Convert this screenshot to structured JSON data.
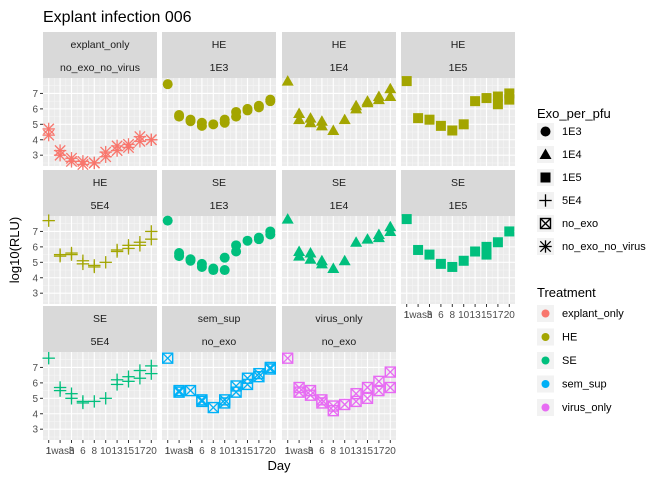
{
  "chart_data": {
    "type": "scatter",
    "title": "Explant infection 006",
    "xlabel": "Day",
    "ylabel": "log10(RLU)",
    "x_categories": [
      "1",
      "1wash",
      "3",
      "6",
      "8",
      "10",
      "13",
      "15",
      "17",
      "20"
    ],
    "x_tick_labels": [
      "1",
      "1wash",
      "3",
      "6",
      "8",
      "10",
      "13",
      "15",
      "17",
      "20"
    ],
    "y_ticks": [
      3,
      4,
      5,
      6,
      7
    ],
    "ylim": [
      2.3,
      8.0
    ],
    "grid": true,
    "legend_position": "right",
    "legends": {
      "shape": {
        "title": "Exo_per_pfu",
        "entries": [
          {
            "label": "1E3",
            "shape": "circle"
          },
          {
            "label": "1E4",
            "shape": "triangle"
          },
          {
            "label": "1E5",
            "shape": "square"
          },
          {
            "label": "5E4",
            "shape": "plus"
          },
          {
            "label": "no_exo",
            "shape": "boxx"
          },
          {
            "label": "no_exo_no_virus",
            "shape": "asterisk"
          }
        ]
      },
      "color": {
        "title": "Treatment",
        "entries": [
          {
            "label": "explant_only",
            "color": "#F8766D"
          },
          {
            "label": "HE",
            "color": "#A3A500"
          },
          {
            "label": "SE",
            "color": "#00BF7D"
          },
          {
            "label": "sem_sup",
            "color": "#00B0F6"
          },
          {
            "label": "virus_only",
            "color": "#E76BF3"
          }
        ]
      }
    },
    "panels": [
      {
        "strip1": "explant_only",
        "strip2": "no_exo_no_virus",
        "treatment": "explant_only",
        "shape": "asterisk",
        "series": [
          [
            4.7,
            4.3
          ],
          [
            3.3,
            3.0
          ],
          [
            2.8,
            2.6
          ],
          [
            2.6,
            2.4
          ],
          [
            2.5,
            2.5
          ],
          [
            3.2,
            2.9
          ],
          [
            3.6,
            3.3
          ],
          [
            3.7,
            3.5
          ],
          [
            4.2,
            3.9
          ],
          [
            4.0,
            4.0
          ]
        ]
      },
      {
        "strip1": "HE",
        "strip2": "1E3",
        "treatment": "HE",
        "shape": "circle",
        "series": [
          [
            7.6
          ],
          [
            5.6,
            5.5
          ],
          [
            5.3,
            5.2
          ],
          [
            5.1,
            4.9
          ],
          [
            5.0
          ],
          [
            5.1,
            5.3
          ],
          [
            5.8,
            5.5
          ],
          [
            6.0,
            5.9
          ],
          [
            6.2,
            6.1
          ],
          [
            6.6,
            6.5
          ]
        ]
      },
      {
        "strip1": "HE",
        "strip2": "1E4",
        "treatment": "HE",
        "shape": "triangle",
        "series": [
          [
            7.8
          ],
          [
            5.7,
            5.3
          ],
          [
            5.4,
            5.1
          ],
          [
            5.2,
            4.9
          ],
          [
            4.6
          ],
          [
            5.3
          ],
          [
            6.2,
            6.0
          ],
          [
            6.4,
            6.5
          ],
          [
            6.8,
            6.6
          ],
          [
            7.3,
            6.8
          ]
        ]
      },
      {
        "strip1": "HE",
        "strip2": "1E5",
        "treatment": "HE",
        "shape": "square",
        "series": [
          [
            7.8
          ],
          [
            5.4
          ],
          [
            5.3
          ],
          [
            4.9
          ],
          [
            4.6
          ],
          [
            5.0
          ],
          [
            6.5
          ],
          [
            6.7
          ],
          [
            6.8,
            6.3
          ],
          [
            7.0,
            6.6
          ]
        ]
      },
      {
        "strip1": "HE",
        "strip2": "5E4",
        "treatment": "HE",
        "shape": "plus",
        "series": [
          [
            7.7
          ],
          [
            5.5,
            5.4
          ],
          [
            5.6,
            5.5
          ],
          [
            5.1,
            4.9
          ],
          [
            4.7,
            4.8
          ],
          [
            5.0
          ],
          [
            5.8,
            5.7
          ],
          [
            6.1,
            5.9
          ],
          [
            6.3,
            6.1
          ],
          [
            7.0,
            6.5
          ]
        ]
      },
      {
        "strip1": "SE",
        "strip2": "1E3",
        "treatment": "SE",
        "shape": "circle",
        "series": [
          [
            7.7
          ],
          [
            5.6,
            5.4
          ],
          [
            5.2,
            5.1
          ],
          [
            4.9,
            4.7
          ],
          [
            4.6,
            4.5
          ],
          [
            5.3,
            4.5
          ],
          [
            6.1,
            5.7
          ],
          [
            6.4
          ],
          [
            6.6,
            6.5
          ],
          [
            7.0,
            6.8
          ]
        ]
      },
      {
        "strip1": "SE",
        "strip2": "1E4",
        "treatment": "SE",
        "shape": "triangle",
        "series": [
          [
            7.8
          ],
          [
            5.7,
            5.4
          ],
          [
            5.6,
            5.2
          ],
          [
            5.1,
            4.9
          ],
          [
            4.6
          ],
          [
            5.1
          ],
          [
            6.3
          ],
          [
            6.5
          ],
          [
            6.8,
            6.6
          ],
          [
            7.3,
            7.0
          ]
        ]
      },
      {
        "strip1": "SE",
        "strip2": "1E5",
        "treatment": "SE",
        "shape": "square",
        "series": [
          [
            7.8
          ],
          [
            5.8
          ],
          [
            5.5
          ],
          [
            4.9
          ],
          [
            4.7
          ],
          [
            5.1
          ],
          [
            5.7
          ],
          [
            6.0,
            5.5
          ],
          [
            6.3
          ],
          [
            7.0
          ]
        ]
      },
      {
        "strip1": "SE",
        "strip2": "5E4",
        "treatment": "SE",
        "shape": "plus",
        "series": [
          [
            7.6
          ],
          [
            5.7,
            5.5
          ],
          [
            5.3,
            5.0
          ],
          [
            4.8,
            4.7
          ],
          [
            4.8
          ],
          [
            5.0
          ],
          [
            6.2,
            5.9
          ],
          [
            6.4,
            6.1
          ],
          [
            6.8,
            6.3
          ],
          [
            7.1,
            6.6
          ]
        ]
      },
      {
        "strip1": "sem_sup",
        "strip2": "no_exo",
        "treatment": "sem_sup",
        "shape": "boxx",
        "series": [
          [
            7.6
          ],
          [
            5.5,
            5.4
          ],
          [
            5.5
          ],
          [
            4.9,
            4.8
          ],
          [
            4.4
          ],
          [
            4.9,
            4.7
          ],
          [
            5.8,
            5.4
          ],
          [
            6.3,
            5.9
          ],
          [
            6.6,
            6.4
          ],
          [
            7.0,
            6.9
          ]
        ]
      },
      {
        "strip1": "virus_only",
        "strip2": "no_exo",
        "treatment": "virus_only",
        "shape": "boxx",
        "series": [
          [
            7.6
          ],
          [
            5.7,
            5.4
          ],
          [
            5.5,
            5.2
          ],
          [
            4.9,
            4.7
          ],
          [
            4.5,
            4.2
          ],
          [
            4.6
          ],
          [
            5.3,
            4.8
          ],
          [
            5.7,
            5.0
          ],
          [
            6.1,
            5.5
          ],
          [
            6.7,
            5.7
          ]
        ]
      }
    ]
  }
}
